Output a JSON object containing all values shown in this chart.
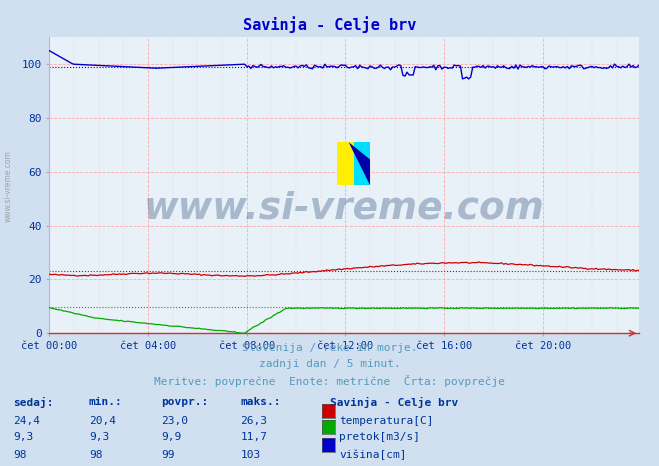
{
  "title": "Savinja - Celje brv",
  "title_color": "#0000cc",
  "bg_color": "#d0e0f0",
  "plot_bg_color": "#e8f0f8",
  "grid_major_color": "#ffaaaa",
  "x_tick_labels": [
    "čet 00:00",
    "čet 04:00",
    "čet 08:00",
    "čet 12:00",
    "čet 16:00",
    "čet 20:00"
  ],
  "x_tick_positions": [
    0,
    48,
    96,
    144,
    192,
    240
  ],
  "y_ticks": [
    0,
    20,
    40,
    60,
    80,
    100
  ],
  "ylim": [
    0,
    110
  ],
  "xlim": [
    0,
    287
  ],
  "subtitle1": "Slovenija / reke in morje.",
  "subtitle2": "zadnji dan / 5 minut.",
  "subtitle3": "Meritve: povprečne  Enote: metrične  Črta: povprečje",
  "subtitle_color": "#5599bb",
  "watermark": "www.si-vreme.com",
  "watermark_color": "#1a3a6a",
  "watermark_alpha": 0.3,
  "legend_title": "Savinja - Celje brv",
  "legend_color": "#003399",
  "series": {
    "temperatura": {
      "color": "#cc0000",
      "label": "temperatura[C]",
      "sedaj": 24.4,
      "min": 20.4,
      "povpr": 23.0,
      "maks": 26.3
    },
    "pretok": {
      "color": "#00aa00",
      "label": "pretok[m3/s]",
      "sedaj": 9.3,
      "min": 9.3,
      "povpr": 9.9,
      "maks": 11.7
    },
    "visina": {
      "color": "#0000cc",
      "label": "višina[cm]",
      "sedaj": 98,
      "min": 98,
      "povpr": 99,
      "maks": 103
    }
  },
  "table_header": [
    "sedaj:",
    "min.:",
    "povpr.:",
    "maks.:"
  ],
  "table_color": "#003399"
}
